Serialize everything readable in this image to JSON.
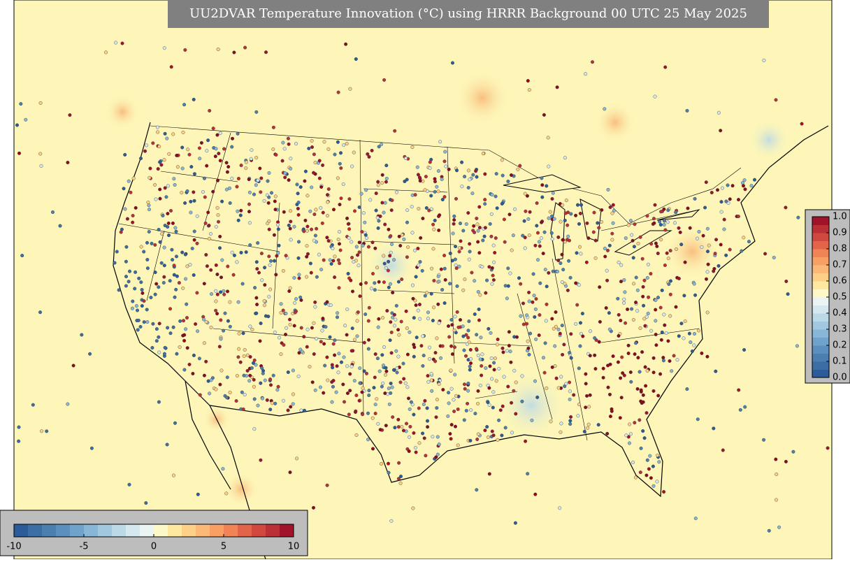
{
  "map": {
    "title": "UU2DVAR Temperature Innovation (°C) using HRRR Background 00 UTC 25 May 2025",
    "colorbar_bottom": {
      "range": [
        -10,
        10
      ],
      "ticks": [
        -10,
        -5,
        0,
        5,
        10
      ],
      "colors": [
        "#2c5b9a",
        "#3a6ea5",
        "#4b7fb0",
        "#5b8fbd",
        "#6fa3cc",
        "#87b6d6",
        "#a2c8e0",
        "#bcd9e8",
        "#d5e8ef",
        "#eaf4f2",
        "#fdf8c8",
        "#fee8a0",
        "#fdd087",
        "#fcb877",
        "#f8a064",
        "#f08456",
        "#e2654a",
        "#d1483e",
        "#bb2f36",
        "#a0132a"
      ]
    },
    "colorbar_right": {
      "range": [
        0,
        1
      ],
      "ticks": [
        {
          "value": 0,
          "label": "0.0"
        },
        {
          "value": 0.1,
          "label": "0.1"
        },
        {
          "value": 0.2,
          "label": "0.2"
        },
        {
          "value": 0.3,
          "label": "0.3"
        },
        {
          "value": 0.4,
          "label": "0.4"
        },
        {
          "value": 0.5,
          "label": "0.5"
        },
        {
          "value": 0.6,
          "label": "0.6"
        },
        {
          "value": 0.7,
          "label": "0.7"
        },
        {
          "value": 0.8,
          "label": "0.8"
        },
        {
          "value": 0.9,
          "label": "0.9"
        },
        {
          "value": 1,
          "label": "1.0"
        }
      ],
      "colors": [
        "#2c5b9a",
        "#3a6ea5",
        "#4b7fb0",
        "#5b8fbd",
        "#6fa3cc",
        "#87b6d6",
        "#a2c8e0",
        "#bcd9e8",
        "#d5e8ef",
        "#eaf4f2",
        "#fdf8c8",
        "#fee8a0",
        "#fdd087",
        "#fcb877",
        "#f8a064",
        "#f08456",
        "#e2654a",
        "#d1483e",
        "#bb2f36",
        "#a0132a"
      ]
    }
  }
}
